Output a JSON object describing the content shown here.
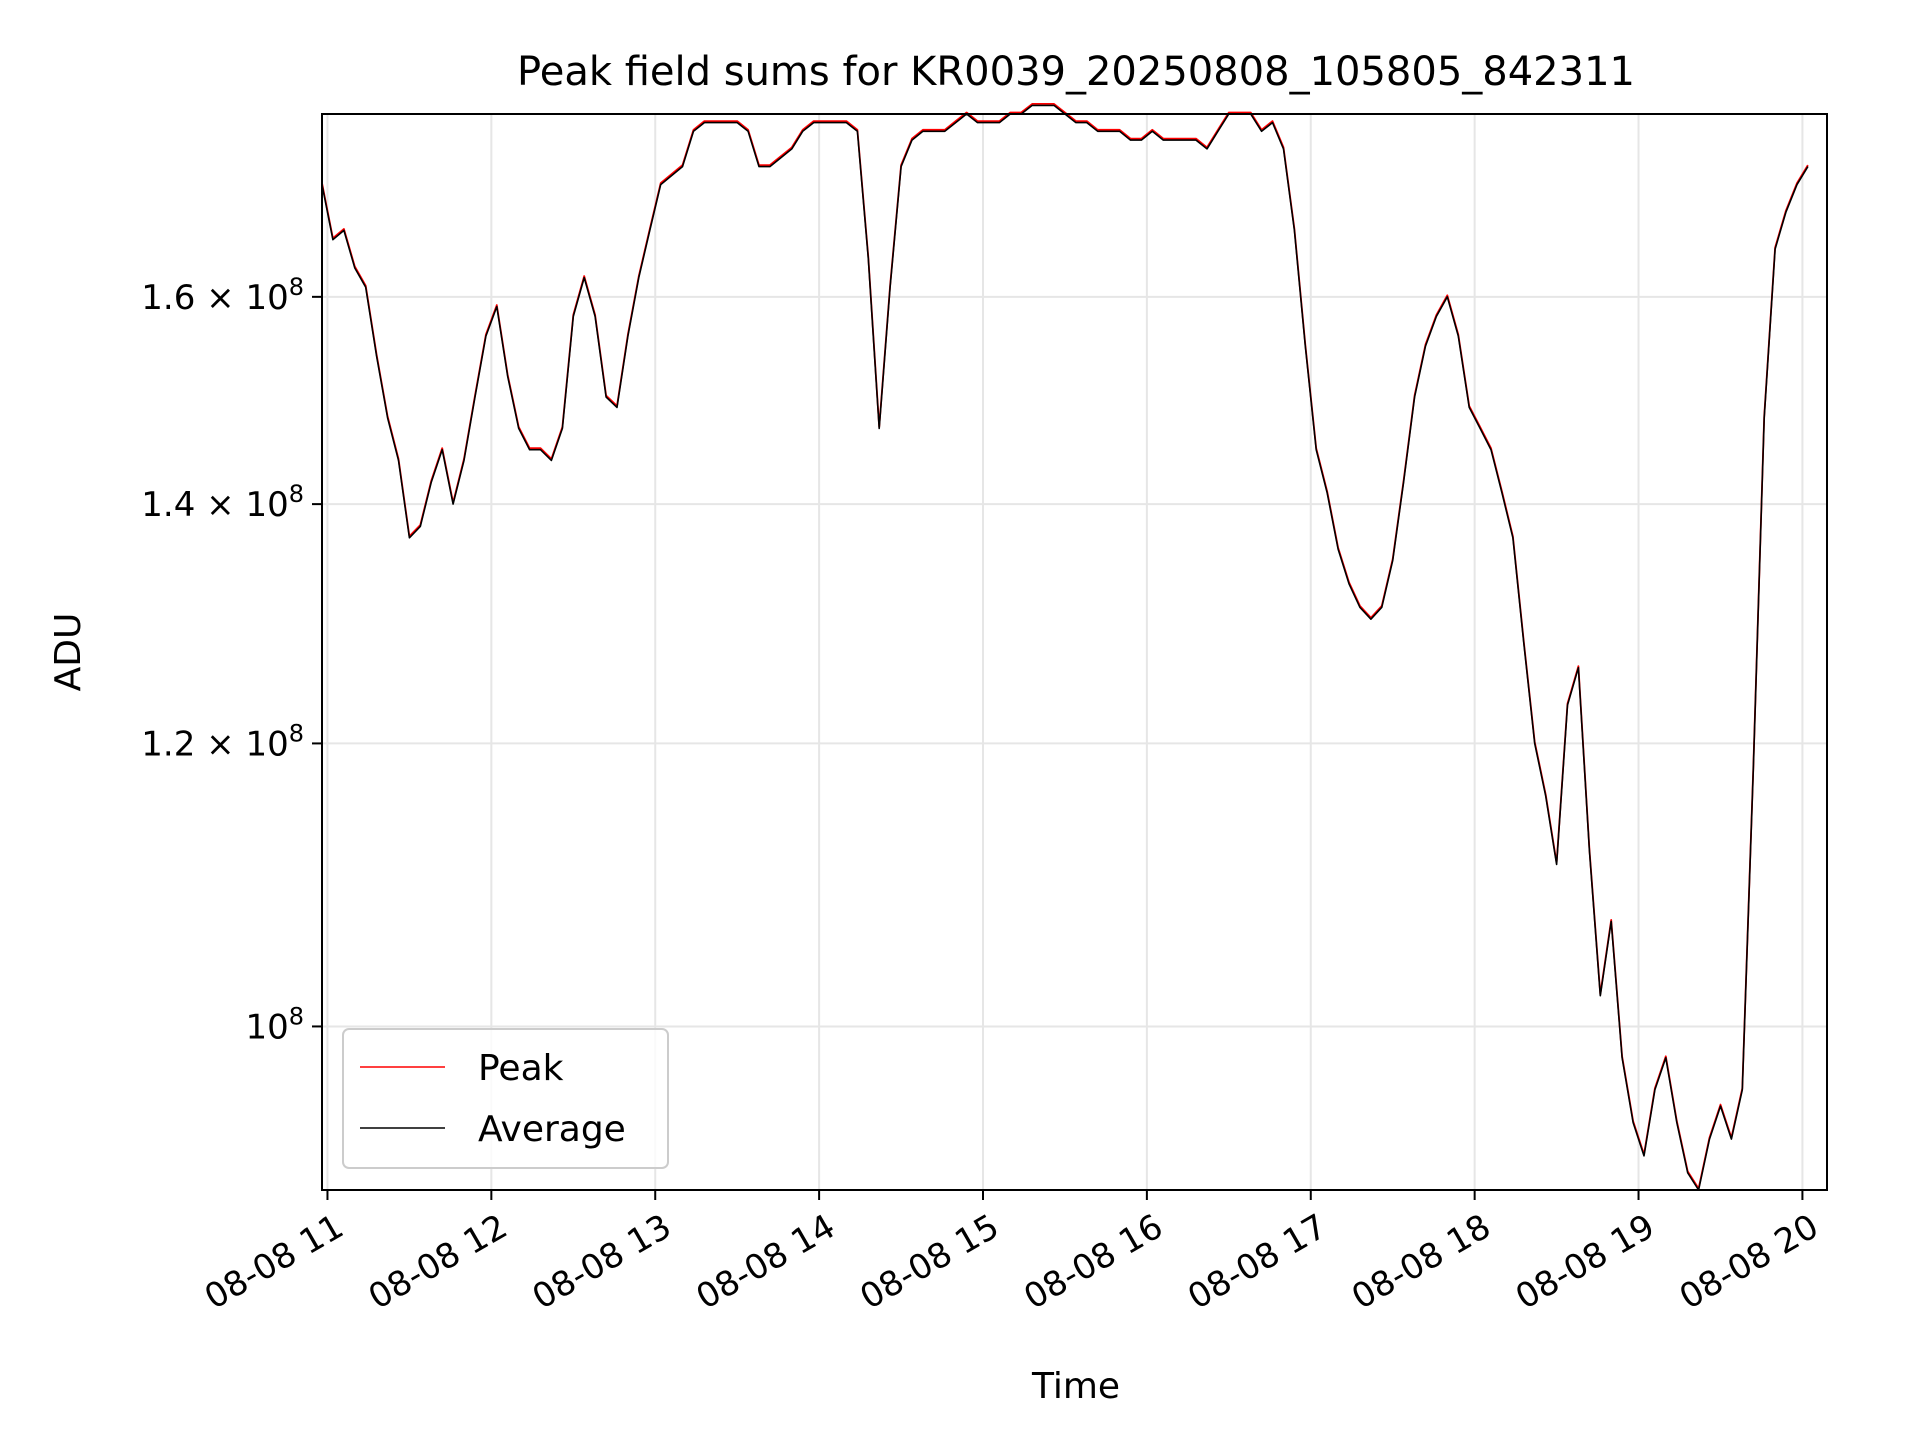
{
  "chart_data": {
    "type": "line",
    "title": "Peak field sums for KR0039_20250808_105805_842311",
    "xlabel": "Time",
    "ylabel": "ADU",
    "yscale": "log",
    "grid": true,
    "legend_position": "lower-left",
    "xlim": [
      "2025-08-08 10:58",
      "2025-08-08 20:09"
    ],
    "ylim": [
      90000000.0,
      180000000.0
    ],
    "x_ticks": [
      {
        "t": "2025-08-08 11:00",
        "label": "08-08 11"
      },
      {
        "t": "2025-08-08 12:00",
        "label": "08-08 12"
      },
      {
        "t": "2025-08-08 13:00",
        "label": "08-08 13"
      },
      {
        "t": "2025-08-08 14:00",
        "label": "08-08 14"
      },
      {
        "t": "2025-08-08 15:00",
        "label": "08-08 15"
      },
      {
        "t": "2025-08-08 16:00",
        "label": "08-08 16"
      },
      {
        "t": "2025-08-08 17:00",
        "label": "08-08 17"
      },
      {
        "t": "2025-08-08 18:00",
        "label": "08-08 18"
      },
      {
        "t": "2025-08-08 19:00",
        "label": "08-08 19"
      },
      {
        "t": "2025-08-08 20:00",
        "label": "08-08 20"
      }
    ],
    "y_ticks": [
      {
        "value": 100000000.0,
        "mantissa": "",
        "base": "10",
        "exp": "8"
      },
      {
        "value": 120000000.0,
        "mantissa": "1.2",
        "base": "10",
        "exp": "8"
      },
      {
        "value": 140000000.0,
        "mantissa": "1.4",
        "base": "10",
        "exp": "8"
      },
      {
        "value": 160000000.0,
        "mantissa": "1.6",
        "base": "10",
        "exp": "8"
      }
    ],
    "series": [
      {
        "name": "Peak",
        "color": "#ff0000"
      },
      {
        "name": "Average",
        "color": "#000000"
      }
    ],
    "time": [
      "2025-08-08 10:58",
      "2025-08-08 11:02",
      "2025-08-08 11:06",
      "2025-08-08 11:10",
      "2025-08-08 11:14",
      "2025-08-08 11:18",
      "2025-08-08 11:22",
      "2025-08-08 11:26",
      "2025-08-08 11:30",
      "2025-08-08 11:34",
      "2025-08-08 11:38",
      "2025-08-08 11:42",
      "2025-08-08 11:46",
      "2025-08-08 11:50",
      "2025-08-08 11:54",
      "2025-08-08 11:58",
      "2025-08-08 12:02",
      "2025-08-08 12:06",
      "2025-08-08 12:10",
      "2025-08-08 12:14",
      "2025-08-08 12:18",
      "2025-08-08 12:22",
      "2025-08-08 12:26",
      "2025-08-08 12:30",
      "2025-08-08 12:34",
      "2025-08-08 12:38",
      "2025-08-08 12:42",
      "2025-08-08 12:46",
      "2025-08-08 12:50",
      "2025-08-08 12:54",
      "2025-08-08 12:58",
      "2025-08-08 13:02",
      "2025-08-08 13:06",
      "2025-08-08 13:10",
      "2025-08-08 13:14",
      "2025-08-08 13:18",
      "2025-08-08 13:22",
      "2025-08-08 13:26",
      "2025-08-08 13:30",
      "2025-08-08 13:34",
      "2025-08-08 13:38",
      "2025-08-08 13:42",
      "2025-08-08 13:46",
      "2025-08-08 13:50",
      "2025-08-08 13:54",
      "2025-08-08 13:58",
      "2025-08-08 14:02",
      "2025-08-08 14:06",
      "2025-08-08 14:10",
      "2025-08-08 14:14",
      "2025-08-08 14:18",
      "2025-08-08 14:22",
      "2025-08-08 14:26",
      "2025-08-08 14:30",
      "2025-08-08 14:34",
      "2025-08-08 14:38",
      "2025-08-08 14:42",
      "2025-08-08 14:46",
      "2025-08-08 14:50",
      "2025-08-08 14:54",
      "2025-08-08 14:58",
      "2025-08-08 15:02",
      "2025-08-08 15:06",
      "2025-08-08 15:10",
      "2025-08-08 15:14",
      "2025-08-08 15:18",
      "2025-08-08 15:22",
      "2025-08-08 15:26",
      "2025-08-08 15:30",
      "2025-08-08 15:34",
      "2025-08-08 15:38",
      "2025-08-08 15:42",
      "2025-08-08 15:46",
      "2025-08-08 15:50",
      "2025-08-08 15:54",
      "2025-08-08 15:58",
      "2025-08-08 16:02",
      "2025-08-08 16:06",
      "2025-08-08 16:10",
      "2025-08-08 16:14",
      "2025-08-08 16:18",
      "2025-08-08 16:22",
      "2025-08-08 16:26",
      "2025-08-08 16:30",
      "2025-08-08 16:34",
      "2025-08-08 16:38",
      "2025-08-08 16:42",
      "2025-08-08 16:46",
      "2025-08-08 16:50",
      "2025-08-08 16:54",
      "2025-08-08 16:58",
      "2025-08-08 17:02",
      "2025-08-08 17:06",
      "2025-08-08 17:10",
      "2025-08-08 17:14",
      "2025-08-08 17:18",
      "2025-08-08 17:22",
      "2025-08-08 17:26",
      "2025-08-08 17:30",
      "2025-08-08 17:34",
      "2025-08-08 17:38",
      "2025-08-08 17:42",
      "2025-08-08 17:46",
      "2025-08-08 17:50",
      "2025-08-08 17:54",
      "2025-08-08 17:58",
      "2025-08-08 18:02",
      "2025-08-08 18:06",
      "2025-08-08 18:10",
      "2025-08-08 18:14",
      "2025-08-08 18:18",
      "2025-08-08 18:22",
      "2025-08-08 18:26",
      "2025-08-08 18:30",
      "2025-08-08 18:34",
      "2025-08-08 18:38",
      "2025-08-08 18:42",
      "2025-08-08 18:46",
      "2025-08-08 18:50",
      "2025-08-08 18:54",
      "2025-08-08 18:58",
      "2025-08-08 19:02",
      "2025-08-08 19:06",
      "2025-08-08 19:10",
      "2025-08-08 19:14",
      "2025-08-08 19:18",
      "2025-08-08 19:22",
      "2025-08-08 19:26",
      "2025-08-08 19:30",
      "2025-08-08 19:34",
      "2025-08-08 19:38",
      "2025-08-08 19:42",
      "2025-08-08 19:46",
      "2025-08-08 19:50",
      "2025-08-08 19:54",
      "2025-08-08 19:58",
      "2025-08-08 20:02",
      "2025-08-08 20:06",
      "2025-08-08 20:09"
    ],
    "average": [
      172000000.0,
      166000000.0,
      167000000.0,
      163000000.0,
      161000000.0,
      154000000.0,
      148000000.0,
      144000000.0,
      137000000.0,
      138000000.0,
      142000000.0,
      145000000.0,
      140000000.0,
      144000000.0,
      150000000.0,
      156000000.0,
      159000000.0,
      152000000.0,
      147000000.0,
      145000000.0,
      145000000.0,
      144000000.0,
      147000000.0,
      158000000.0,
      162000000.0,
      158000000.0,
      150000000.0,
      149000000.0,
      156000000.0,
      162000000.0,
      167000000.0,
      172000000.0,
      173000000.0,
      174000000.0,
      178000000.0,
      179000000.0,
      179000000.0,
      179000000.0,
      179000000.0,
      178000000.0,
      174000000.0,
      174000000.0,
      175000000.0,
      176000000.0,
      178000000.0,
      179000000.0,
      179000000.0,
      179000000.0,
      179000000.0,
      178000000.0,
      164000000.0,
      147000000.0,
      161000000.0,
      174000000.0,
      177000000.0,
      178000000.0,
      178000000.0,
      178000000.0,
      179000000.0,
      180000000.0,
      179000000.0,
      179000000.0,
      179000000.0,
      180000000.0,
      180000000.0,
      181000000.0,
      181000000.0,
      181000000.0,
      180000000.0,
      179000000.0,
      179000000.0,
      178000000.0,
      178000000.0,
      178000000.0,
      177000000.0,
      177000000.0,
      178000000.0,
      177000000.0,
      177000000.0,
      177000000.0,
      177000000.0,
      176000000.0,
      178000000.0,
      180000000.0,
      180000000.0,
      180000000.0,
      178000000.0,
      179000000.0,
      176000000.0,
      167000000.0,
      155000000.0,
      145000000.0,
      141000000.0,
      136000000.0,
      133000000.0,
      131000000.0,
      130000000.0,
      131000000.0,
      135000000.0,
      142000000.0,
      150000000.0,
      155000000.0,
      158000000.0,
      160000000.0,
      156000000.0,
      149000000.0,
      147000000.0,
      145000000.0,
      141000000.0,
      137000000.0,
      128000000.0,
      120000000.0,
      116000000.0,
      111000000.0,
      123000000.0,
      126000000.0,
      112000000.0,
      102000000.0,
      107000000.0,
      98000000.0,
      94000000.0,
      92000000.0,
      96000000.0,
      98000000.0,
      94000000.0,
      91000000.0,
      90000000.0,
      93000000.0,
      95000000.0,
      93000000.0,
      96000000.0,
      118000000.0,
      148000000.0,
      165000000.0,
      169000000.0,
      172000000.0,
      174000000.0
    ]
  },
  "legend": {
    "entries": [
      {
        "label": "Peak",
        "color": "#ff0000"
      },
      {
        "label": "Average",
        "color": "#000000"
      }
    ]
  }
}
